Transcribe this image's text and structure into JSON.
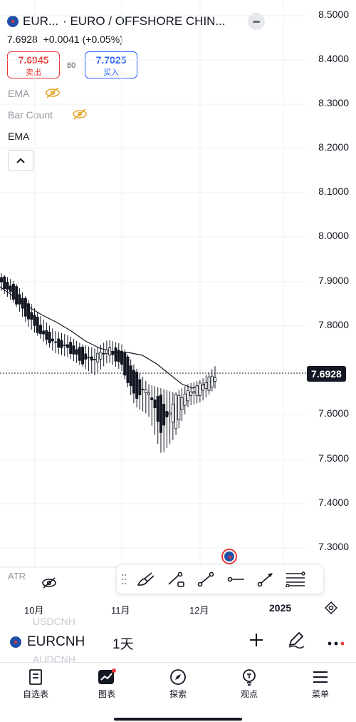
{
  "header": {
    "symbol_short": "EUR...",
    "symbol_full": "· EURO / OFFSHORE CHIN...",
    "price": "7.6928",
    "change": "+0.0041 (+0.05%)",
    "sell_price": "7.6945",
    "sell_label": "卖出",
    "spread": "80",
    "buy_price": "7.7025",
    "buy_label": "买入"
  },
  "indicators": [
    {
      "label": "EMA",
      "hidden": true
    },
    {
      "label": "Bar Count",
      "hidden": true
    },
    {
      "label": "EMA",
      "hidden": false
    }
  ],
  "price_axis": {
    "ticks": [
      "8.5000",
      "8.4000",
      "8.3000",
      "8.2000",
      "8.1000",
      "8.0000",
      "7.9000",
      "7.8000",
      "7.7000",
      "7.6000",
      "7.5000",
      "7.4000",
      "7.3000"
    ],
    "current": "7.6928"
  },
  "time_axis": {
    "labels": [
      "10月",
      "11月",
      "12月",
      "2025"
    ]
  },
  "watermark": "ATR",
  "symbol_bar": {
    "symbol": "EURCNH",
    "interval": "1天",
    "ghost_above": "USDCNH",
    "ghost_below": "AUDCNH"
  },
  "nav": [
    {
      "label": "自选表",
      "icon": "watchlist-icon"
    },
    {
      "label": "图表",
      "icon": "chart-icon"
    },
    {
      "label": "探索",
      "icon": "compass-icon"
    },
    {
      "label": "观点",
      "icon": "ideas-icon"
    },
    {
      "label": "菜单",
      "icon": "menu-icon"
    }
  ],
  "colors": {
    "sell": "#e53935",
    "buy": "#2962ff",
    "candle": "#131722",
    "indicator_hidden": "#e5a72b"
  },
  "chart_data": {
    "type": "candlestick",
    "series": [
      {
        "name": "EURCNH",
        "ohlc_sample": [
          [
            7.91,
            7.92,
            7.88,
            7.9
          ],
          [
            7.89,
            7.9,
            7.85,
            7.86
          ],
          [
            7.85,
            7.86,
            7.8,
            7.82
          ],
          [
            7.8,
            7.82,
            7.77,
            7.78
          ],
          [
            7.77,
            7.79,
            7.74,
            7.76
          ],
          [
            7.76,
            7.78,
            7.73,
            7.75
          ],
          [
            7.75,
            7.76,
            7.71,
            7.72
          ],
          [
            7.72,
            7.75,
            7.69,
            7.73
          ],
          [
            7.74,
            7.77,
            7.72,
            7.75
          ],
          [
            7.75,
            7.76,
            7.7,
            7.71
          ],
          [
            7.7,
            7.71,
            7.62,
            7.64
          ],
          [
            7.64,
            7.67,
            7.6,
            7.66
          ],
          [
            7.64,
            7.66,
            7.51,
            7.56
          ],
          [
            7.57,
            7.65,
            7.55,
            7.64
          ],
          [
            7.64,
            7.67,
            7.62,
            7.65
          ],
          [
            7.65,
            7.68,
            7.63,
            7.67
          ],
          [
            7.67,
            7.71,
            7.66,
            7.69
          ]
        ]
      }
    ],
    "ema_approx": [
      7.9,
      7.88,
      7.86,
      7.84,
      7.82,
      7.8,
      7.78,
      7.76,
      7.75,
      7.74,
      7.73,
      7.71,
      7.68,
      7.66,
      7.65,
      7.66,
      7.67
    ],
    "ylim": [
      7.3,
      8.5
    ],
    "current_price": 7.6928
  }
}
